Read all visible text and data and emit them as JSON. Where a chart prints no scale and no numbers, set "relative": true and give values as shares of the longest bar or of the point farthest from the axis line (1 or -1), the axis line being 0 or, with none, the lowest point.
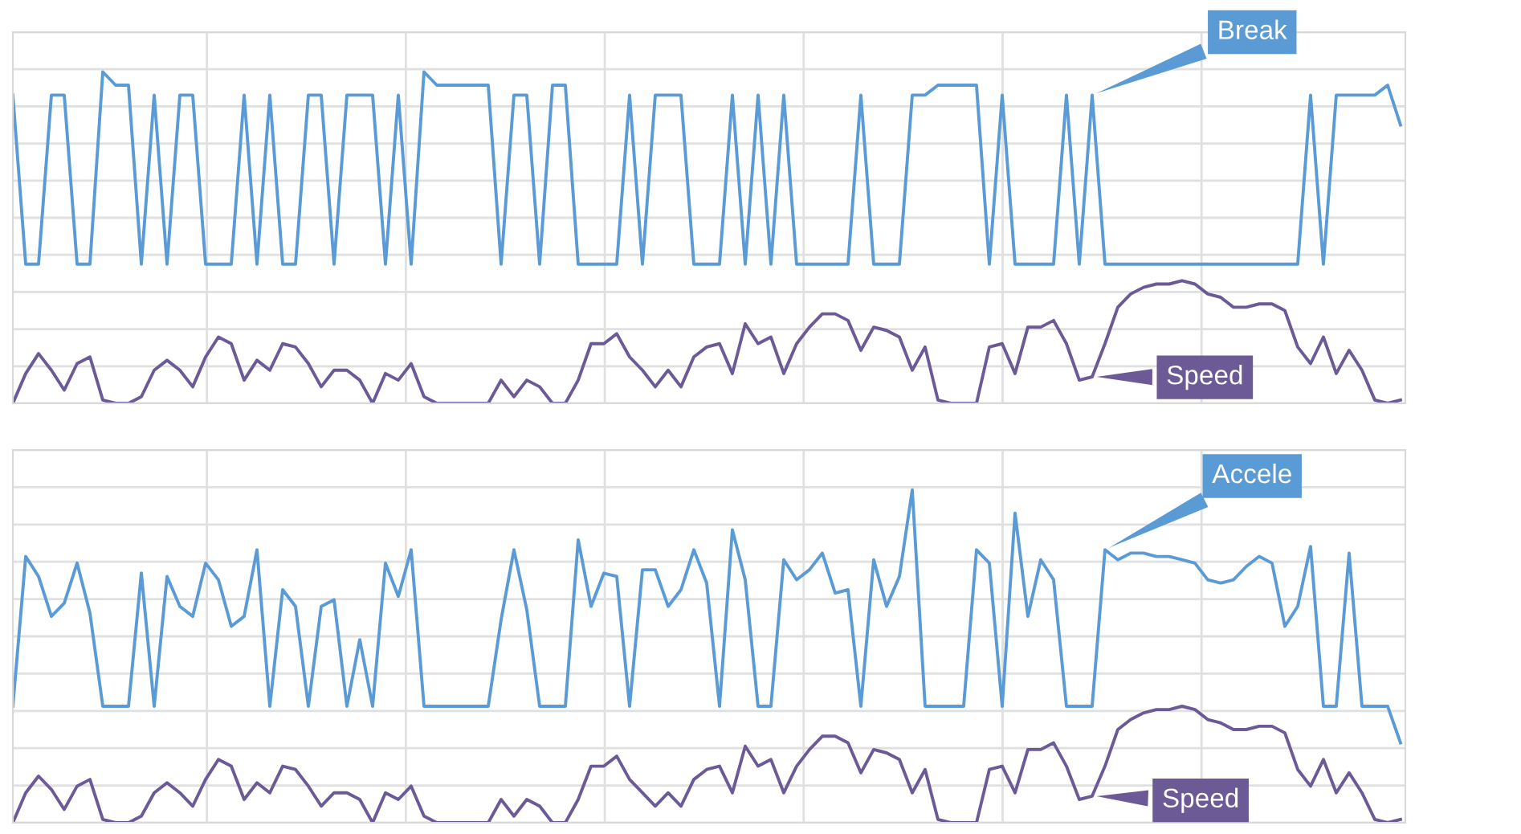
{
  "chart_data": [
    {
      "type": "line",
      "relative": true,
      "grid": true,
      "tick_labels": false,
      "categories": [
        null,
        null,
        null,
        null,
        null,
        null,
        null,
        null,
        null,
        null,
        null,
        null,
        null,
        null,
        null,
        null,
        null,
        null,
        null,
        null,
        null,
        null,
        null,
        null,
        null,
        null,
        null,
        null,
        null,
        null,
        null,
        null,
        null,
        null,
        null,
        null,
        null,
        null,
        null,
        null,
        null,
        null,
        null,
        null,
        null,
        null,
        null,
        null,
        null,
        null,
        null,
        null,
        null,
        null,
        null,
        null,
        null,
        null,
        null,
        null,
        null,
        null,
        null,
        null,
        null,
        null,
        null,
        null,
        null,
        null,
        null,
        null,
        null,
        null,
        null,
        null,
        null,
        null,
        null,
        null,
        null,
        null,
        null,
        null,
        null,
        null,
        null,
        null,
        null,
        null,
        null,
        null,
        null,
        null,
        null,
        null,
        null,
        null,
        null,
        null,
        null,
        null,
        null,
        null,
        null,
        null,
        null,
        null,
        null
      ],
      "series": [
        {
          "name": "Break",
          "color": "#5b9bd5",
          "values": [
            0.93,
            0.42,
            0.42,
            0.93,
            0.93,
            0.42,
            0.42,
            1,
            0.96,
            0.96,
            0.42,
            0.93,
            0.42,
            0.93,
            0.93,
            0.42,
            0.42,
            0.42,
            0.93,
            0.42,
            0.93,
            0.42,
            0.42,
            0.93,
            0.93,
            0.42,
            0.93,
            0.93,
            0.93,
            0.42,
            0.93,
            0.42,
            1,
            0.96,
            0.96,
            0.96,
            0.96,
            0.96,
            0.42,
            0.93,
            0.93,
            0.42,
            0.96,
            0.96,
            0.42,
            0.42,
            0.42,
            0.42,
            0.93,
            0.42,
            0.93,
            0.93,
            0.93,
            0.42,
            0.42,
            0.42,
            0.93,
            0.42,
            0.93,
            0.42,
            0.93,
            0.42,
            0.42,
            0.42,
            0.42,
            0.42,
            0.93,
            0.42,
            0.42,
            0.42,
            0.93,
            0.93,
            0.96,
            0.96,
            0.96,
            0.96,
            0.42,
            0.93,
            0.42,
            0.42,
            0.42,
            0.42,
            0.93,
            0.42,
            0.93,
            0.42,
            0.42,
            0.42,
            0.42,
            0.42,
            0.42,
            0.42,
            0.42,
            0.42,
            0.42,
            0.42,
            0.42,
            0.42,
            0.42,
            0.42,
            0.42,
            0.93,
            0.42,
            0.93,
            0.93,
            0.93,
            0.93,
            0.96,
            0.84
          ]
        },
        {
          "name": "Speed",
          "color": "#6c5a96",
          "values": [
            0,
            0.09,
            0.15,
            0.1,
            0.04,
            0.12,
            0.14,
            0.01,
            0,
            0,
            0.02,
            0.1,
            0.13,
            0.1,
            0.05,
            0.14,
            0.2,
            0.18,
            0.07,
            0.13,
            0.1,
            0.18,
            0.17,
            0.12,
            0.05,
            0.1,
            0.1,
            0.07,
            0,
            0.09,
            0.07,
            0.12,
            0.02,
            0,
            0,
            0,
            0,
            0,
            0.07,
            0.02,
            0.07,
            0.05,
            0,
            0,
            0.07,
            0.18,
            0.18,
            0.21,
            0.14,
            0.1,
            0.05,
            0.1,
            0.05,
            0.14,
            0.17,
            0.18,
            0.09,
            0.24,
            0.18,
            0.2,
            0.09,
            0.18,
            0.23,
            0.27,
            0.27,
            0.25,
            0.16,
            0.23,
            0.22,
            0.2,
            0.1,
            0.17,
            0.01,
            0,
            0,
            0,
            0.17,
            0.18,
            0.09,
            0.23,
            0.23,
            0.25,
            0.18,
            0.07,
            0.08,
            0.18,
            0.29,
            0.33,
            0.35,
            0.36,
            0.36,
            0.37,
            0.36,
            0.33,
            0.32,
            0.29,
            0.29,
            0.3,
            0.3,
            0.28,
            0.17,
            0.12,
            0.2,
            0.09,
            0.16,
            0.1,
            0.01,
            0,
            0.01
          ]
        }
      ]
    },
    {
      "type": "line",
      "relative": true,
      "grid": true,
      "tick_labels": false,
      "categories": [
        null,
        null,
        null,
        null,
        null,
        null,
        null,
        null,
        null,
        null,
        null,
        null,
        null,
        null,
        null,
        null,
        null,
        null,
        null,
        null,
        null,
        null,
        null,
        null,
        null,
        null,
        null,
        null,
        null,
        null,
        null,
        null,
        null,
        null,
        null,
        null,
        null,
        null,
        null,
        null,
        null,
        null,
        null,
        null,
        null,
        null,
        null,
        null,
        null,
        null,
        null,
        null,
        null,
        null,
        null,
        null,
        null,
        null,
        null,
        null,
        null,
        null,
        null,
        null,
        null,
        null,
        null,
        null,
        null,
        null,
        null,
        null,
        null,
        null,
        null,
        null,
        null,
        null,
        null,
        null,
        null,
        null,
        null,
        null,
        null,
        null,
        null,
        null,
        null,
        null,
        null,
        null,
        null,
        null,
        null,
        null,
        null,
        null,
        null,
        null,
        null,
        null,
        null,
        null,
        null,
        null,
        null,
        null,
        null
      ],
      "series": [
        {
          "name": "Accele",
          "color": "#5b9bd5",
          "values": [
            0.35,
            0.8,
            0.74,
            0.62,
            0.66,
            0.78,
            0.63,
            0.35,
            0.35,
            0.35,
            0.75,
            0.35,
            0.74,
            0.65,
            0.62,
            0.78,
            0.73,
            0.59,
            0.62,
            0.82,
            0.35,
            0.7,
            0.65,
            0.35,
            0.65,
            0.67,
            0.35,
            0.55,
            0.35,
            0.78,
            0.68,
            0.82,
            0.35,
            0.35,
            0.35,
            0.35,
            0.35,
            0.35,
            0.61,
            0.82,
            0.64,
            0.35,
            0.35,
            0.35,
            0.85,
            0.65,
            0.75,
            0.74,
            0.35,
            0.76,
            0.76,
            0.65,
            0.7,
            0.82,
            0.72,
            0.35,
            0.88,
            0.73,
            0.35,
            0.35,
            0.79,
            0.73,
            0.76,
            0.81,
            0.69,
            0.7,
            0.35,
            0.79,
            0.65,
            0.74,
            1,
            0.35,
            0.35,
            0.35,
            0.35,
            0.82,
            0.78,
            0.35,
            0.93,
            0.62,
            0.79,
            0.73,
            0.35,
            0.35,
            0.35,
            0.82,
            0.79,
            0.81,
            0.81,
            0.8,
            0.8,
            0.79,
            0.78,
            0.73,
            0.72,
            0.73,
            0.77,
            0.8,
            0.78,
            0.59,
            0.65,
            0.83,
            0.35,
            0.35,
            0.81,
            0.35,
            0.35,
            0.35,
            0.24
          ]
        },
        {
          "name": "Speed",
          "color": "#6c5a96",
          "values": [
            0,
            0.09,
            0.14,
            0.1,
            0.04,
            0.11,
            0.13,
            0.01,
            0,
            0,
            0.02,
            0.09,
            0.12,
            0.09,
            0.05,
            0.13,
            0.19,
            0.17,
            0.07,
            0.12,
            0.09,
            0.17,
            0.16,
            0.11,
            0.05,
            0.09,
            0.09,
            0.07,
            0,
            0.09,
            0.07,
            0.11,
            0.02,
            0,
            0,
            0,
            0,
            0,
            0.07,
            0.02,
            0.07,
            0.05,
            0,
            0,
            0.07,
            0.17,
            0.17,
            0.2,
            0.13,
            0.09,
            0.05,
            0.09,
            0.05,
            0.13,
            0.16,
            0.17,
            0.09,
            0.23,
            0.17,
            0.19,
            0.09,
            0.17,
            0.22,
            0.26,
            0.26,
            0.24,
            0.15,
            0.22,
            0.21,
            0.19,
            0.09,
            0.16,
            0.01,
            0,
            0,
            0,
            0.16,
            0.17,
            0.09,
            0.22,
            0.22,
            0.24,
            0.17,
            0.07,
            0.08,
            0.17,
            0.28,
            0.31,
            0.33,
            0.34,
            0.34,
            0.35,
            0.34,
            0.31,
            0.3,
            0.28,
            0.28,
            0.29,
            0.29,
            0.27,
            0.16,
            0.11,
            0.19,
            0.09,
            0.15,
            0.09,
            0.01,
            0,
            0.01
          ]
        }
      ]
    }
  ]
}
